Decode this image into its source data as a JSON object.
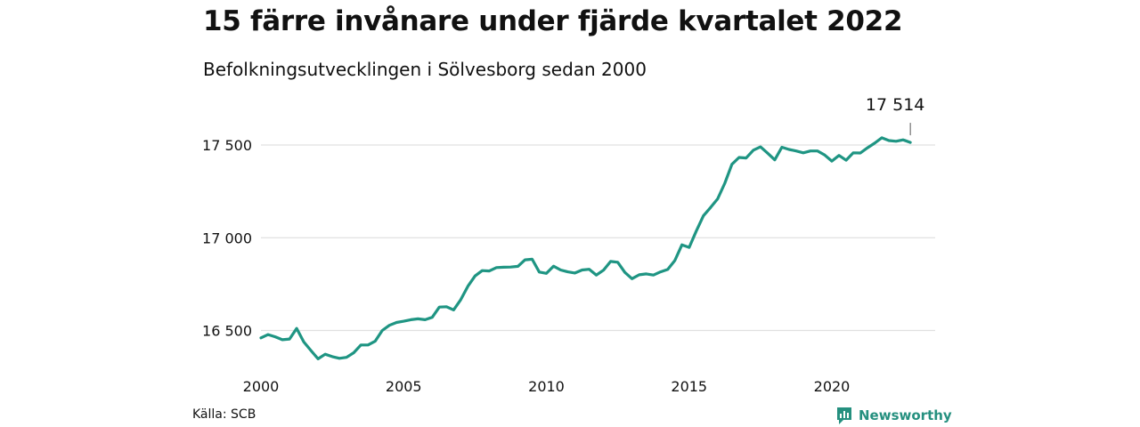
{
  "colors": {
    "line": "#1f9583",
    "grid": "#e0e0e0",
    "brand": "#25907f"
  },
  "chart_data": {
    "type": "line",
    "title": "15 färre invånare under fjärde kvartalet 2022",
    "subtitle": "Befolkningsutvecklingen i Sölvesborg sedan 2000",
    "xlim": [
      2000,
      2023
    ],
    "ylim": [
      16360,
      17620
    ],
    "x_ticks": [
      2000,
      2005,
      2010,
      2015,
      2020
    ],
    "x_tick_labels": [
      "2000",
      "2005",
      "2010",
      "2015",
      "2020"
    ],
    "y_ticks": [
      16500,
      17000,
      17500
    ],
    "y_tick_labels": [
      "16 500",
      "17 000",
      "17 500"
    ],
    "grid": "horizontal",
    "annotation": {
      "label": "17 514",
      "x": 2022.75,
      "y": 17514
    },
    "series": [
      {
        "color": "#1f9583",
        "x": [
          2000.0,
          2000.25,
          2000.5,
          2000.75,
          2001.0,
          2001.25,
          2001.5,
          2001.75,
          2002.0,
          2002.25,
          2002.5,
          2002.75,
          2003.0,
          2003.25,
          2003.5,
          2003.75,
          2004.0,
          2004.25,
          2004.5,
          2004.75,
          2005.0,
          2005.25,
          2005.5,
          2005.75,
          2006.0,
          2006.25,
          2006.5,
          2006.75,
          2007.0,
          2007.25,
          2007.5,
          2007.75,
          2008.0,
          2008.25,
          2008.5,
          2008.75,
          2009.0,
          2009.25,
          2009.5,
          2009.75,
          2010.0,
          2010.25,
          2010.5,
          2010.75,
          2011.0,
          2011.25,
          2011.5,
          2011.75,
          2012.0,
          2012.25,
          2012.5,
          2012.75,
          2013.0,
          2013.25,
          2013.5,
          2013.75,
          2014.0,
          2014.25,
          2014.5,
          2014.75,
          2015.0,
          2015.25,
          2015.5,
          2015.75,
          2016.0,
          2016.25,
          2016.5,
          2016.75,
          2017.0,
          2017.25,
          2017.5,
          2017.75,
          2018.0,
          2018.25,
          2018.5,
          2018.75,
          2019.0,
          2019.25,
          2019.5,
          2019.75,
          2020.0,
          2020.25,
          2020.5,
          2020.75,
          2021.0,
          2021.25,
          2021.5,
          2021.75,
          2022.0,
          2022.25,
          2022.5,
          2022.75
        ],
        "values": [
          16460,
          16478,
          16466,
          16450,
          16454,
          16511,
          16438,
          16392,
          16347,
          16372,
          16359,
          16350,
          16355,
          16380,
          16422,
          16422,
          16442,
          16500,
          16528,
          16543,
          16550,
          16558,
          16563,
          16558,
          16571,
          16626,
          16628,
          16611,
          16666,
          16739,
          16794,
          16823,
          16821,
          16839,
          16841,
          16842,
          16846,
          16881,
          16884,
          16815,
          16808,
          16847,
          16826,
          16816,
          16810,
          16826,
          16830,
          16799,
          16825,
          16872,
          16868,
          16813,
          16779,
          16800,
          16805,
          16799,
          16816,
          16829,
          16877,
          16962,
          16948,
          17036,
          17118,
          17163,
          17210,
          17294,
          17396,
          17433,
          17430,
          17472,
          17490,
          17456,
          17420,
          17488,
          17476,
          17468,
          17458,
          17468,
          17468,
          17446,
          17413,
          17444,
          17418,
          17458,
          17457,
          17485,
          17510,
          17539,
          17524,
          17520,
          17528,
          17514
        ]
      }
    ]
  },
  "footer": {
    "source": "Källa: SCB",
    "brand": "Newsworthy"
  }
}
